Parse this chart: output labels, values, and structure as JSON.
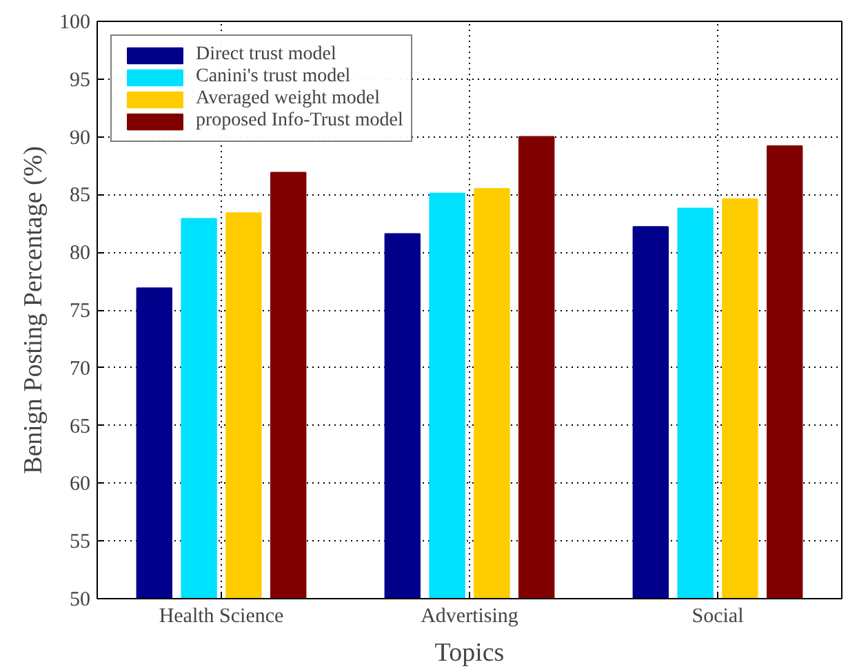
{
  "chart_data": {
    "type": "bar",
    "xlabel": "Topics",
    "ylabel": "Benign Posting Percentage (%)",
    "categories": [
      "Health Science",
      "Advertising",
      "Social"
    ],
    "series": [
      {
        "name": "Direct trust model",
        "color": "#00008b",
        "values": [
          76.9,
          81.6,
          82.2
        ]
      },
      {
        "name": "Canini's trust model",
        "color": "#00e1ff",
        "values": [
          82.9,
          85.1,
          83.8
        ]
      },
      {
        "name": "Averaged weight model",
        "color": "#ffcc00",
        "values": [
          83.4,
          85.5,
          84.6
        ]
      },
      {
        "name": "proposed Info-Trust model",
        "color": "#800000",
        "values": [
          86.9,
          90.0,
          89.2
        ]
      }
    ],
    "ylim": [
      50,
      100
    ],
    "yticks": [
      50,
      55,
      60,
      65,
      70,
      75,
      80,
      85,
      90,
      95,
      100
    ],
    "grid": true,
    "legend": "top left"
  }
}
